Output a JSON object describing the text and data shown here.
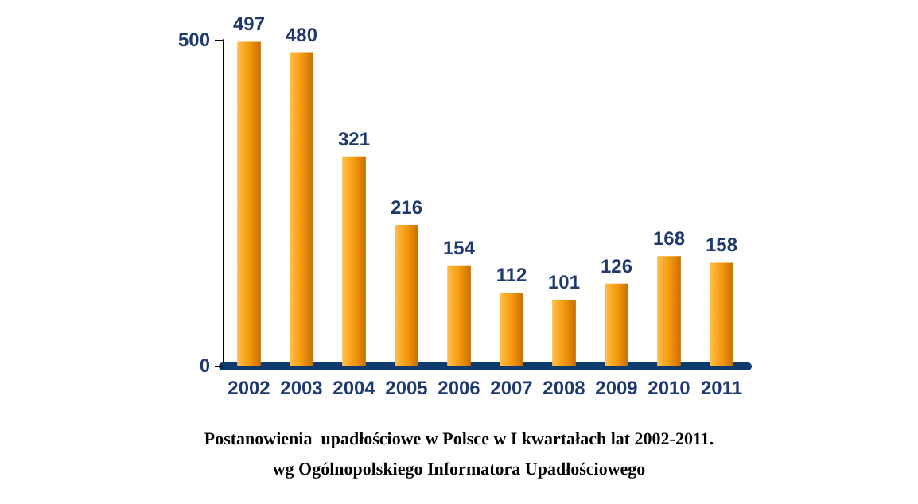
{
  "chart_data": {
    "type": "bar",
    "title": "Postanowienia  upadłościowe w Polsce w I kwartałach lat 2002-2011.",
    "annotations": [
      "wg Ogólnopolskiego Informatora Upadłościowego"
    ],
    "categories": [
      "2002",
      "2003",
      "2004",
      "2005",
      "2006",
      "2007",
      "2008",
      "2009",
      "2010",
      "2011"
    ],
    "values": [
      497,
      480,
      321,
      216,
      154,
      112,
      101,
      126,
      168,
      158
    ],
    "color": "#f59a0c",
    "ylim": [
      0,
      500
    ],
    "yticks": [
      0,
      500
    ],
    "data_labels": true,
    "grid": false
  }
}
